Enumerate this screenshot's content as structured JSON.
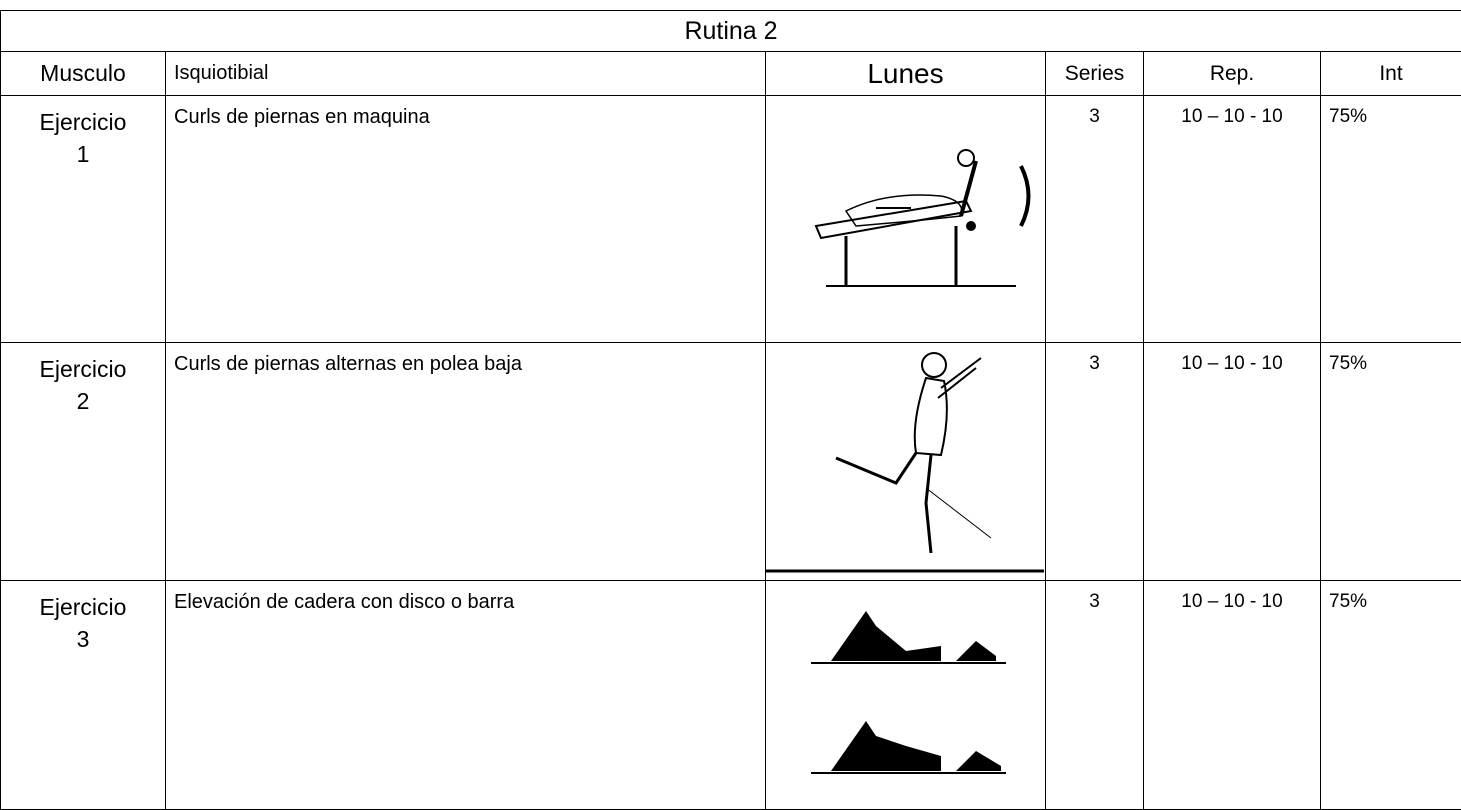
{
  "title": "Rutina  2",
  "header": {
    "muscle_label": "Musculo",
    "muscle": "Isquiotibial",
    "day": "Lunes",
    "series": "Series",
    "reps": "Rep.",
    "intensity": "Int"
  },
  "rows": [
    {
      "exercise_label": "Ejercicio",
      "exercise_number": "1",
      "name": "Curls de piernas en maquina",
      "series": "3",
      "reps": "10 – 10 - 10",
      "intensity": "75%"
    },
    {
      "exercise_label": "Ejercicio",
      "exercise_number": "2",
      "name": "Curls de piernas alternas en polea baja",
      "series": "3",
      "reps": "10 – 10 - 10",
      "intensity": "75%"
    },
    {
      "exercise_label": "Ejercicio",
      "exercise_number": "3",
      "name": "Elevación de cadera con disco o barra",
      "series": "3",
      "reps": "10 – 10 - 10",
      "intensity": "75%"
    }
  ]
}
